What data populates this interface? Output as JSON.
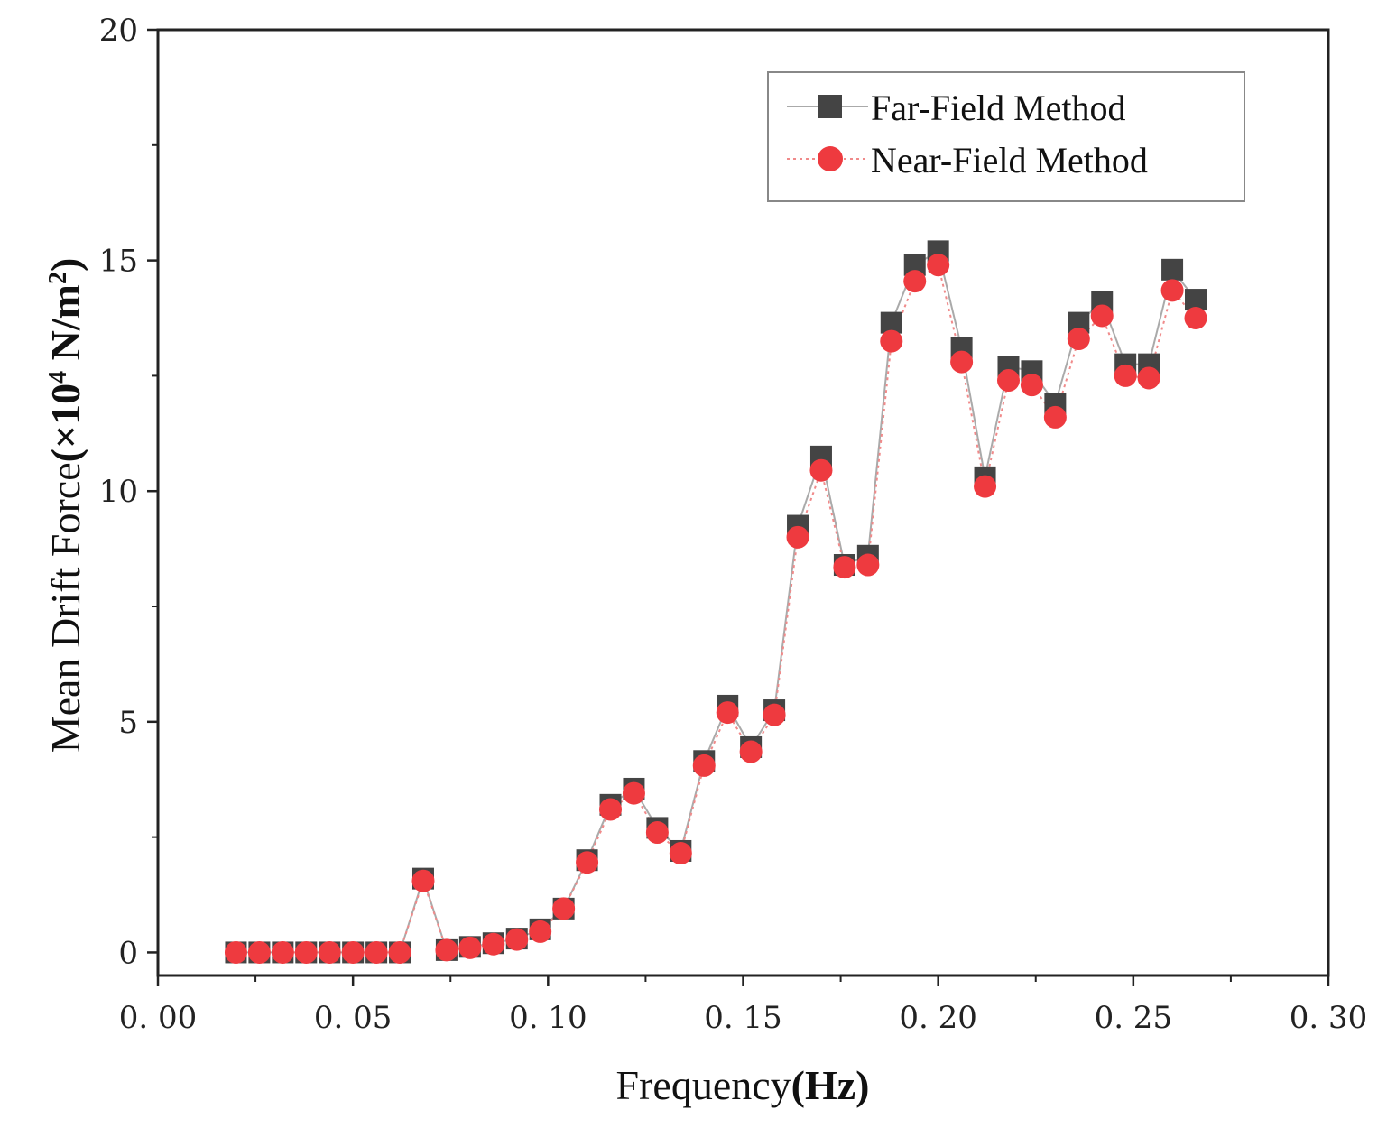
{
  "chart_data": {
    "type": "scatter",
    "title": "",
    "xlabel": "Frequency(Hz)",
    "xlabel_parts": {
      "plain": "Frequency",
      "bold": "(Hz)"
    },
    "ylabel": "Mean Drift Force(×10⁴ N/m²)",
    "ylabel_parts": {
      "plain": "Mean Drift Force",
      "bold_prefix": "(×10",
      "exp1": "4",
      "bold_mid": " N/m",
      "exp2": "2",
      "bold_suffix": ")"
    },
    "xlim": [
      0.0,
      0.3
    ],
    "ylim": [
      -0.5,
      20
    ],
    "xticks": [
      0.0,
      0.05,
      0.1,
      0.15,
      0.2,
      0.25,
      0.3
    ],
    "xtick_labels": [
      "0. 00",
      "0. 05",
      "0. 10",
      "0. 15",
      "0. 20",
      "0. 25",
      "0. 30"
    ],
    "yticks": [
      0,
      5,
      10,
      15,
      20
    ],
    "ytick_labels": [
      "0",
      "5",
      "10",
      "15",
      "20"
    ],
    "grid": false,
    "legend_position": "top-right",
    "x": [
      0.02,
      0.026,
      0.032,
      0.038,
      0.044,
      0.05,
      0.056,
      0.062,
      0.068,
      0.074,
      0.08,
      0.086,
      0.092,
      0.098,
      0.104,
      0.11,
      0.116,
      0.122,
      0.128,
      0.134,
      0.14,
      0.146,
      0.152,
      0.158,
      0.164,
      0.17,
      0.176,
      0.182,
      0.188,
      0.194,
      0.2,
      0.206,
      0.212,
      0.218,
      0.224,
      0.23,
      0.236,
      0.242,
      0.248,
      0.254,
      0.26,
      0.266
    ],
    "series": [
      {
        "name": "Far-Field Method",
        "marker": "square",
        "color": "#444444",
        "line_color": "#aaaaaa",
        "line_style": "solid",
        "values": [
          0.0,
          0.0,
          0.0,
          0.0,
          0.0,
          0.0,
          0.0,
          0.0,
          1.6,
          0.05,
          0.12,
          0.2,
          0.3,
          0.5,
          0.95,
          2.0,
          3.2,
          3.55,
          2.7,
          2.2,
          4.15,
          5.35,
          4.45,
          5.25,
          9.25,
          10.75,
          8.4,
          8.6,
          13.65,
          14.9,
          15.2,
          13.1,
          10.3,
          12.7,
          12.6,
          11.9,
          13.65,
          14.1,
          12.75,
          12.75,
          14.8,
          14.15
        ]
      },
      {
        "name": "Near-Field Method",
        "marker": "circle",
        "color": "#ee3a3f",
        "line_color": "#f08a8a",
        "line_style": "dotted",
        "values": [
          0.0,
          0.0,
          0.0,
          0.0,
          0.0,
          0.0,
          0.0,
          0.0,
          1.55,
          0.05,
          0.1,
          0.18,
          0.28,
          0.45,
          0.95,
          1.95,
          3.1,
          3.45,
          2.6,
          2.15,
          4.05,
          5.2,
          4.35,
          5.15,
          9.0,
          10.45,
          8.35,
          8.4,
          13.25,
          14.55,
          14.9,
          12.8,
          10.1,
          12.4,
          12.3,
          11.6,
          13.3,
          13.8,
          12.5,
          12.45,
          14.35,
          13.75
        ]
      }
    ]
  }
}
